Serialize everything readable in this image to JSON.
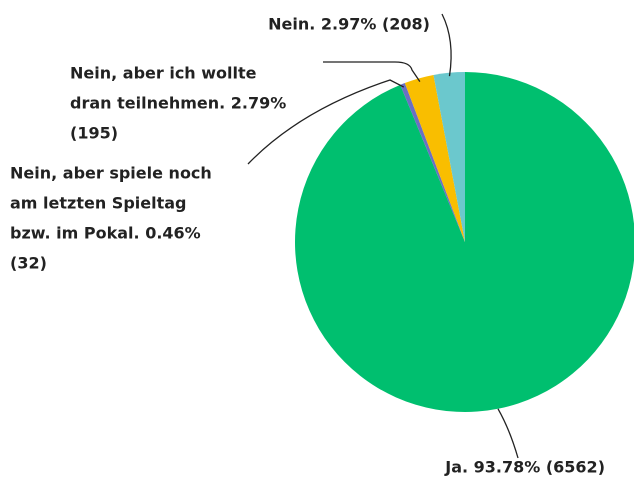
{
  "chart_data": {
    "type": "pie",
    "labels": [
      [
        "Ja. 93.78% (6562)"
      ],
      [
        "Nein, aber spiele noch",
        "am letzten Spieltag",
        "bzw. im Pokal. 0.46%",
        "(32)"
      ],
      [
        "Nein, aber ich wollte",
        "dran teilnehmen. 2.79%",
        "(195)"
      ],
      [
        "Nein. 2.97% (208)"
      ]
    ],
    "values": [
      93.78,
      0.46,
      2.79,
      2.97
    ],
    "colors": [
      "#00bf6f",
      "#6b6fc4",
      "#f9be00",
      "#6bc8cd"
    ]
  }
}
